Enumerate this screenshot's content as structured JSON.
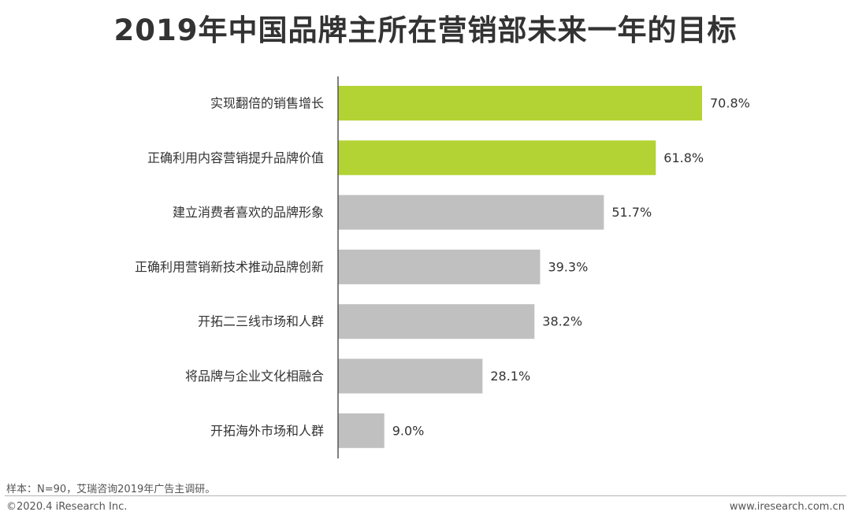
{
  "chart_data": {
    "type": "bar",
    "orientation": "horizontal",
    "title": "2019年中国品牌主所在营销部未来一年的目标",
    "categories": [
      "实现翻倍的销售增长",
      "正确利用内容营销提升品牌价值",
      "建立消费者喜欢的品牌形象",
      "正确利用营销新技术推动品牌创新",
      "开拓二三线市场和人群",
      "将品牌与企业文化相融合",
      "开拓海外市场和人群"
    ],
    "values": [
      70.8,
      61.8,
      51.7,
      39.3,
      38.2,
      28.1,
      9.0
    ],
    "value_labels": [
      "70.8%",
      "61.8%",
      "51.7%",
      "39.3%",
      "38.2%",
      "28.1%",
      "9.0%"
    ],
    "highlighted": [
      true,
      true,
      false,
      false,
      false,
      false,
      false
    ],
    "colors": {
      "highlight": "#b3d334",
      "default": "#c0c0c0",
      "axis": "#555555"
    },
    "xlim": [
      0,
      100
    ],
    "grid": false,
    "legend": "none"
  },
  "footer": {
    "note": "样本：N=90，艾瑞咨询2019年广告主调研。",
    "copyright": "©2020.4 iResearch Inc.",
    "website": "www.iresearch.com.cn"
  }
}
